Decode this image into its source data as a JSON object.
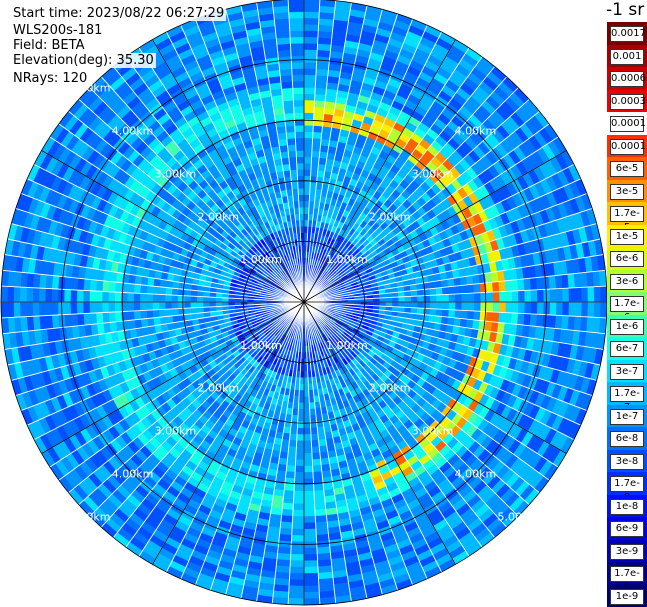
{
  "header": {
    "start_time": "Start time: 2023/08/22 06:27:29",
    "instrument": "WLS200s-181",
    "field": "Field: BETA",
    "elevation": "Elevation(deg): 35.30",
    "nrays": "NRays: 120"
  },
  "colorbar": {
    "unit_label": "-1 sr",
    "entries": [
      {
        "label": "0.0017",
        "color": "#7a0000"
      },
      {
        "label": "0.001",
        "color": "#a50000"
      },
      {
        "label": "0.0006",
        "color": "#c80000"
      },
      {
        "label": "0.0003",
        "color": "#ee0000"
      },
      {
        "label": "0.00017",
        "color": "#ffffff"
      },
      {
        "label": "0.0001",
        "color": "#ff3000"
      },
      {
        "label": "6e-5",
        "color": "#ff6000"
      },
      {
        "label": "3e-5",
        "color": "#ff9000"
      },
      {
        "label": "1.7e-5",
        "color": "#ffc000"
      },
      {
        "label": "1e-5",
        "color": "#ffee00"
      },
      {
        "label": "6e-6",
        "color": "#e0f800"
      },
      {
        "label": "3e-6",
        "color": "#b4ff30"
      },
      {
        "label": "1.7e-6",
        "color": "#80ff70"
      },
      {
        "label": "1e-6",
        "color": "#40ffb0"
      },
      {
        "label": "6e-7",
        "color": "#10ffe8"
      },
      {
        "label": "3e-7",
        "color": "#00e0ff"
      },
      {
        "label": "1.7e-7",
        "color": "#00b8ff"
      },
      {
        "label": "1e-7",
        "color": "#0094ff"
      },
      {
        "label": "6e-8",
        "color": "#0070ff"
      },
      {
        "label": "3e-8",
        "color": "#0050ff"
      },
      {
        "label": "1.7e-8",
        "color": "#0030ff"
      },
      {
        "label": "1e-8",
        "color": "#0010ff"
      },
      {
        "label": "6e-9",
        "color": "#0000e0"
      },
      {
        "label": "3e-9",
        "color": "#0000b8"
      },
      {
        "label": "1.7e-9",
        "color": "#000090"
      },
      {
        "label": "1e-9",
        "color": "#00006a"
      }
    ]
  },
  "chart_data": {
    "type": "heatmap",
    "projection": "polar PPI",
    "field": "BETA",
    "nrays": 120,
    "range_rings_km": [
      1,
      2,
      3,
      4,
      5
    ],
    "ring_labels": [
      "1.00km",
      "2.00km",
      "3.00km",
      "4.00km",
      "5.00km"
    ],
    "max_range_km": 5.0,
    "radial_lines_deg": [
      0,
      30,
      60,
      90,
      120,
      150,
      180,
      210,
      240,
      270,
      300,
      330
    ],
    "colorbar_range": [
      1e-09,
      0.0017
    ],
    "colorbar_scale": "log",
    "features": [
      {
        "description": "high backscatter arc",
        "range_km": [
          2.9,
          3.3
        ],
        "azimuth_deg": [
          0,
          160
        ],
        "peak_value": 0.0001
      },
      {
        "description": "ring of elevated backscatter",
        "range_km": [
          3.0,
          3.5
        ],
        "azimuth_deg": [
          0,
          360
        ],
        "typical_value": 3e-07
      },
      {
        "description": "low backscatter interior",
        "range_km": [
          0,
          1.2
        ],
        "azimuth_deg": [
          0,
          360
        ],
        "typical_value": 3e-08
      },
      {
        "description": "outer region",
        "range_km": [
          3.6,
          5.0
        ],
        "azimuth_deg": [
          0,
          360
        ],
        "typical_value": 1e-07
      }
    ]
  }
}
